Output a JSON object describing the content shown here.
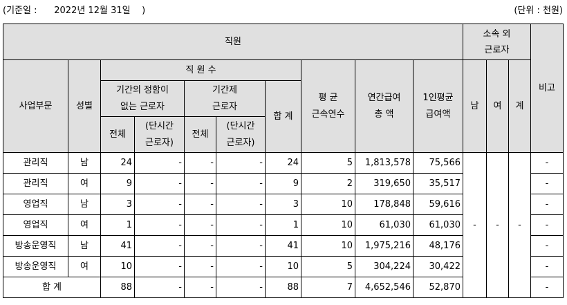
{
  "header": {
    "base_date": "(기준일 :      2022년 12월 31일    )",
    "unit": "(단위 : 천원)"
  },
  "columns": {
    "employees": "직원",
    "contract_workers": [
      "소속 외",
      "근로자"
    ],
    "division": "사업부문",
    "gender": "성별",
    "headcount": "직 원 수",
    "indefinite": [
      "기간의 정함이",
      "없는 근로자"
    ],
    "fixed_term": [
      "기간제",
      "근로자"
    ],
    "total": "전체",
    "part_time": [
      "(단시간",
      "근로자)"
    ],
    "sum": "합 계",
    "avg_tenure": [
      "평 균",
      "근속연수"
    ],
    "annual_pay": [
      "연간급여",
      "총 액"
    ],
    "per_capita_pay": [
      "1인평균",
      "급여액"
    ],
    "male": "남",
    "female": "여",
    "subtotal": "계",
    "remarks": "비고"
  },
  "rows": [
    {
      "division": "관리직",
      "gender": "남",
      "indef_total": "24",
      "indef_part": "-",
      "fixed_total": "-",
      "fixed_part": "-",
      "sum": "24",
      "tenure": "5",
      "annual_pay": "1,813,578",
      "per_capita": "75,566",
      "remarks": "-"
    },
    {
      "division": "관리직",
      "gender": "여",
      "indef_total": "9",
      "indef_part": "-",
      "fixed_total": "-",
      "fixed_part": "-",
      "sum": "9",
      "tenure": "2",
      "annual_pay": "319,650",
      "per_capita": "35,517",
      "remarks": "-"
    },
    {
      "division": "영업직",
      "gender": "남",
      "indef_total": "3",
      "indef_part": "-",
      "fixed_total": "-",
      "fixed_part": "-",
      "sum": "3",
      "tenure": "10",
      "annual_pay": "178,848",
      "per_capita": "59,616",
      "remarks": "-"
    },
    {
      "division": "영업직",
      "gender": "여",
      "indef_total": "1",
      "indef_part": "-",
      "fixed_total": "-",
      "fixed_part": "-",
      "sum": "1",
      "tenure": "10",
      "annual_pay": "61,030",
      "per_capita": "61,030",
      "remarks": "-"
    },
    {
      "division": "방송운영직",
      "gender": "남",
      "indef_total": "41",
      "indef_part": "-",
      "fixed_total": "-",
      "fixed_part": "-",
      "sum": "41",
      "tenure": "10",
      "annual_pay": "1,975,216",
      "per_capita": "48,176",
      "remarks": "-"
    },
    {
      "division": "방송운영직",
      "gender": "여",
      "indef_total": "10",
      "indef_part": "-",
      "fixed_total": "-",
      "fixed_part": "-",
      "sum": "10",
      "tenure": "5",
      "annual_pay": "304,224",
      "per_capita": "30,422",
      "remarks": "-"
    }
  ],
  "total_row": {
    "label": "합 계",
    "indef_total": "88",
    "indef_part": "-",
    "fixed_total": "-",
    "fixed_part": "-",
    "sum": "88",
    "tenure": "7",
    "annual_pay": "4,652,546",
    "per_capita": "52,870",
    "remarks": "-"
  },
  "contract_values": {
    "male": "-",
    "female": "-",
    "subtotal": "-"
  }
}
